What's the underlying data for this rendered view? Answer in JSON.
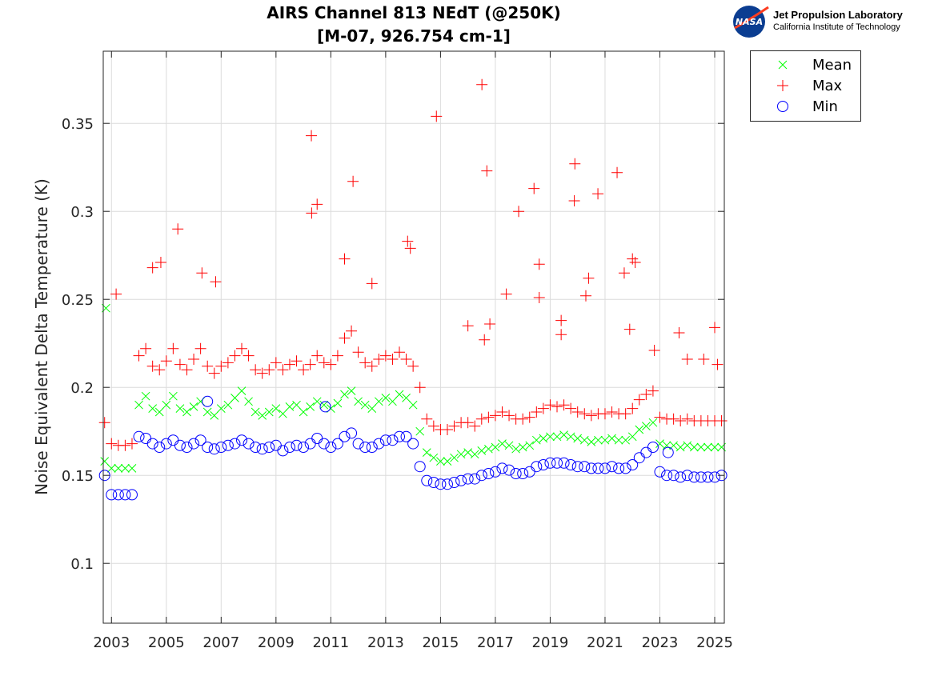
{
  "chart_data": {
    "type": "scatter",
    "title": [
      "AIRS Channel 813 NEdT (@250K)",
      "[M-07, 926.754 cm-1]"
    ],
    "xlabel": "",
    "ylabel": "Noise Equivalent Delta Temperature (K)",
    "xlim": [
      2002.7,
      2025.35
    ],
    "ylim": [
      0.066,
      0.391
    ],
    "xticks": [
      2003,
      2005,
      2007,
      2009,
      2011,
      2013,
      2015,
      2017,
      2019,
      2021,
      2023,
      2025
    ],
    "xtick_labels": [
      "2003",
      "2005",
      "2007",
      "2009",
      "2011",
      "2013",
      "2015",
      "2017",
      "2019",
      "2021",
      "2023",
      "2025"
    ],
    "yticks": [
      0.1,
      0.15,
      0.2,
      0.25,
      0.3,
      0.35
    ],
    "ytick_labels": [
      "0.1",
      "0.15",
      "0.2",
      "0.25",
      "0.3",
      "0.35"
    ],
    "grid": true,
    "legend_position": "outside-top-right",
    "x": [
      2002.75,
      2003,
      2003.25,
      2003.5,
      2003.75,
      2004,
      2004.25,
      2004.5,
      2004.75,
      2005,
      2005.25,
      2005.5,
      2005.75,
      2006,
      2006.25,
      2006.5,
      2006.75,
      2007,
      2007.25,
      2007.5,
      2007.75,
      2008,
      2008.25,
      2008.5,
      2008.75,
      2009,
      2009.25,
      2009.5,
      2009.75,
      2010,
      2010.25,
      2010.5,
      2010.75,
      2011,
      2011.25,
      2011.5,
      2011.75,
      2012,
      2012.25,
      2012.5,
      2012.75,
      2013,
      2013.25,
      2013.5,
      2013.75,
      2014,
      2014.25,
      2014.5,
      2014.75,
      2015,
      2015.25,
      2015.5,
      2015.75,
      2016,
      2016.25,
      2016.5,
      2016.75,
      2017,
      2017.25,
      2017.5,
      2017.75,
      2018,
      2018.25,
      2018.5,
      2018.75,
      2019,
      2019.25,
      2019.5,
      2019.75,
      2020,
      2020.25,
      2020.5,
      2020.75,
      2021,
      2021.25,
      2021.5,
      2021.75,
      2022,
      2022.25,
      2022.5,
      2022.75,
      2023,
      2023.25,
      2023.5,
      2023.75,
      2024,
      2024.25,
      2024.5,
      2024.75,
      2025,
      2025.25
    ],
    "series": [
      {
        "name": "Mean",
        "marker": "x",
        "color": "#00ff00",
        "values": [
          0.158,
          0.154,
          0.154,
          0.154,
          0.154,
          0.19,
          0.195,
          0.188,
          0.186,
          0.19,
          0.195,
          0.188,
          0.186,
          0.189,
          0.192,
          0.186,
          0.184,
          0.188,
          0.19,
          0.194,
          0.198,
          0.192,
          0.186,
          0.184,
          0.186,
          0.188,
          0.185,
          0.189,
          0.19,
          0.186,
          0.189,
          0.192,
          0.19,
          0.188,
          0.191,
          0.196,
          0.198,
          0.192,
          0.19,
          0.188,
          0.192,
          0.194,
          0.192,
          0.196,
          0.194,
          0.19,
          0.175,
          0.163,
          0.16,
          0.158,
          0.158,
          0.16,
          0.162,
          0.163,
          0.162,
          0.164,
          0.165,
          0.166,
          0.168,
          0.167,
          0.165,
          0.166,
          0.167,
          0.17,
          0.171,
          0.172,
          0.172,
          0.173,
          0.172,
          0.171,
          0.17,
          0.169,
          0.17,
          0.17,
          0.171,
          0.17,
          0.17,
          0.172,
          0.176,
          0.178,
          0.18,
          0.168,
          0.167,
          0.167,
          0.166,
          0.167,
          0.166,
          0.166,
          0.166,
          0.166,
          0.166
        ],
        "outliers": [
          [
            2002.8,
            0.245
          ]
        ]
      },
      {
        "name": "Max",
        "marker": "+",
        "color": "#ff0000",
        "values": [
          0.18,
          0.168,
          0.167,
          0.167,
          0.168,
          0.218,
          0.222,
          0.212,
          0.21,
          0.215,
          0.222,
          0.213,
          0.21,
          0.216,
          0.222,
          0.212,
          0.208,
          0.212,
          0.214,
          0.218,
          0.222,
          0.218,
          0.21,
          0.208,
          0.21,
          0.214,
          0.21,
          0.213,
          0.215,
          0.21,
          0.213,
          0.218,
          0.214,
          0.213,
          0.218,
          0.228,
          0.232,
          0.22,
          0.214,
          0.212,
          0.216,
          0.218,
          0.216,
          0.22,
          0.216,
          0.212,
          0.2,
          0.182,
          0.178,
          0.176,
          0.176,
          0.178,
          0.18,
          0.18,
          0.178,
          0.182,
          0.183,
          0.184,
          0.186,
          0.184,
          0.182,
          0.182,
          0.183,
          0.186,
          0.188,
          0.19,
          0.189,
          0.19,
          0.188,
          0.186,
          0.185,
          0.184,
          0.185,
          0.185,
          0.186,
          0.185,
          0.185,
          0.188,
          0.193,
          0.196,
          0.198,
          0.183,
          0.182,
          0.182,
          0.181,
          0.182,
          0.181,
          0.181,
          0.181,
          0.181,
          0.181
        ],
        "outliers": [
          [
            2003.17,
            0.253
          ],
          [
            2010.29,
            0.343
          ],
          [
            2010.3,
            0.299
          ],
          [
            2010.5,
            0.304
          ],
          [
            2011.81,
            0.317
          ],
          [
            2005.42,
            0.29
          ],
          [
            2014.85,
            0.354
          ],
          [
            2016.51,
            0.372
          ],
          [
            2016.69,
            0.323
          ],
          [
            2017.85,
            0.3
          ],
          [
            2018.41,
            0.313
          ],
          [
            2019.9,
            0.327
          ],
          [
            2019.88,
            0.306
          ],
          [
            2020.74,
            0.31
          ],
          [
            2021.44,
            0.322
          ],
          [
            2022.0,
            0.273
          ],
          [
            2022.1,
            0.271
          ],
          [
            2021.7,
            0.265
          ],
          [
            2013.8,
            0.283
          ],
          [
            2013.9,
            0.279
          ],
          [
            2004.5,
            0.268
          ],
          [
            2004.8,
            0.271
          ],
          [
            2011.5,
            0.273
          ],
          [
            2012.5,
            0.259
          ],
          [
            2006.3,
            0.265
          ],
          [
            2006.8,
            0.26
          ],
          [
            2017.4,
            0.253
          ],
          [
            2018.6,
            0.27
          ],
          [
            2018.6,
            0.251
          ],
          [
            2020.4,
            0.262
          ],
          [
            2020.3,
            0.252
          ],
          [
            2023.7,
            0.231
          ],
          [
            2025.0,
            0.234
          ],
          [
            2025.1,
            0.213
          ],
          [
            2016.0,
            0.235
          ],
          [
            2016.6,
            0.227
          ],
          [
            2016.8,
            0.236
          ],
          [
            2019.4,
            0.238
          ],
          [
            2019.4,
            0.23
          ],
          [
            2021.9,
            0.233
          ],
          [
            2022.8,
            0.221
          ],
          [
            2024.6,
            0.216
          ],
          [
            2024.0,
            0.216
          ]
        ]
      },
      {
        "name": "Min",
        "marker": "o",
        "color": "#0000ff",
        "values": [
          0.15,
          0.139,
          0.139,
          0.139,
          0.139,
          0.172,
          0.171,
          0.168,
          0.166,
          0.168,
          0.17,
          0.167,
          0.166,
          0.168,
          0.17,
          0.166,
          0.165,
          0.166,
          0.167,
          0.168,
          0.17,
          0.168,
          0.166,
          0.165,
          0.166,
          0.167,
          0.164,
          0.166,
          0.167,
          0.166,
          0.168,
          0.171,
          0.168,
          0.166,
          0.168,
          0.172,
          0.174,
          0.168,
          0.166,
          0.166,
          0.168,
          0.17,
          0.17,
          0.172,
          0.172,
          0.168,
          0.155,
          0.147,
          0.146,
          0.145,
          0.145,
          0.146,
          0.147,
          0.148,
          0.148,
          0.15,
          0.151,
          0.152,
          0.154,
          0.153,
          0.151,
          0.151,
          0.152,
          0.155,
          0.156,
          0.157,
          0.157,
          0.157,
          0.156,
          0.155,
          0.155,
          0.154,
          0.154,
          0.154,
          0.155,
          0.154,
          0.154,
          0.156,
          0.16,
          0.163,
          0.166,
          0.152,
          0.15,
          0.15,
          0.149,
          0.15,
          0.149,
          0.149,
          0.149,
          0.149,
          0.15
        ],
        "outliers": [
          [
            2006.5,
            0.192
          ],
          [
            2010.8,
            0.189
          ],
          [
            2023.3,
            0.163
          ]
        ]
      }
    ]
  },
  "logo": {
    "name": "Jet Propulsion Laboratory",
    "subtitle": "California Institute of Technology",
    "badge": "NASA"
  }
}
